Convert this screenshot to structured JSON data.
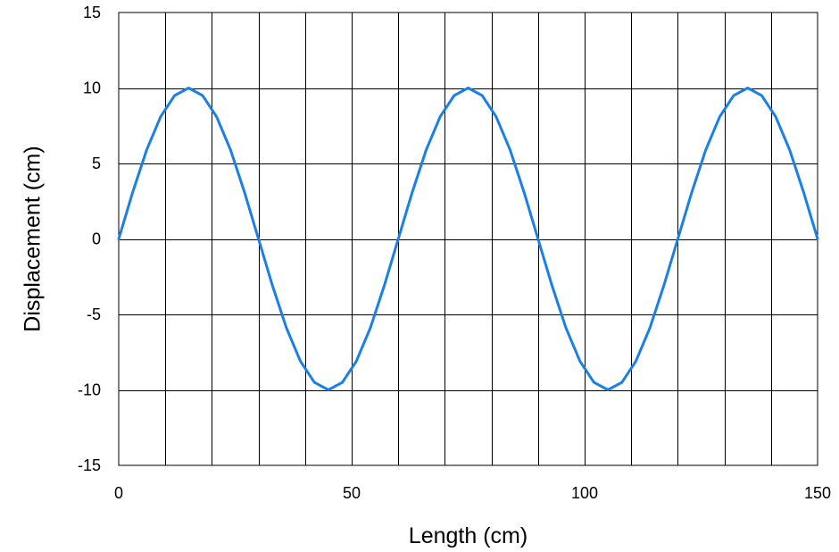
{
  "chart_data": {
    "type": "line",
    "title": "",
    "xlabel": "Length (cm)",
    "ylabel": "Displacement (cm)",
    "xlim": [
      0,
      150
    ],
    "ylim": [
      -15,
      15
    ],
    "x_ticks": [
      "0",
      "50",
      "100",
      "150"
    ],
    "y_ticks": [
      "15",
      "10",
      "5",
      "0",
      "-5",
      "-10",
      "-15"
    ],
    "grid": true,
    "grid_x_step": 10,
    "grid_y_step": 5,
    "line_color": "#1a7fe6",
    "series": [
      {
        "x": [
          0,
          3,
          6,
          9,
          12,
          15,
          18,
          21,
          24,
          27,
          30,
          33,
          36,
          39,
          42,
          45,
          48,
          51,
          54,
          57,
          60,
          63,
          66,
          69,
          72,
          75,
          78,
          81,
          84,
          87,
          90,
          93,
          96,
          99,
          102,
          105,
          108,
          111,
          114,
          117,
          120,
          123,
          126,
          129,
          132,
          135,
          138,
          141,
          144,
          147,
          150
        ],
        "values": [
          0,
          3.1,
          5.9,
          8.1,
          9.5,
          10,
          9.5,
          8.1,
          5.9,
          3.1,
          0,
          -3.1,
          -5.9,
          -8.1,
          -9.5,
          -10,
          -9.5,
          -8.1,
          -5.9,
          -3.1,
          0,
          3.1,
          5.9,
          8.1,
          9.5,
          10,
          9.5,
          8.1,
          5.9,
          3.1,
          0,
          -3.1,
          -5.9,
          -8.1,
          -9.5,
          -10,
          -9.5,
          -8.1,
          -5.9,
          -3.1,
          0,
          3.1,
          5.9,
          8.1,
          9.5,
          10,
          9.5,
          8.1,
          5.9,
          3.1,
          0
        ]
      }
    ]
  }
}
